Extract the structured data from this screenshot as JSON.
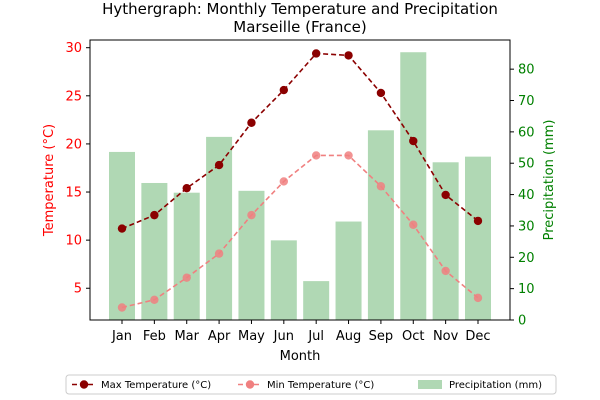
{
  "chart_data": {
    "type": "bar",
    "title": "Hythergraph: Monthly Temperature and Precipitation",
    "subtitle": "Marseille (France)",
    "xlabel": "Month",
    "ylabel_left": "Temperature (°C)",
    "ylabel_right": "Precipitation (mm)",
    "categories": [
      "Jan",
      "Feb",
      "Mar",
      "Apr",
      "May",
      "Jun",
      "Jul",
      "Aug",
      "Sep",
      "Oct",
      "Nov",
      "Dec"
    ],
    "ylim_left": [
      1.7,
      30.8
    ],
    "ylim_right": [
      0,
      89.3
    ],
    "yticks_left": [
      5,
      10,
      15,
      20,
      25,
      30
    ],
    "yticks_right": [
      0,
      10,
      20,
      30,
      40,
      50,
      60,
      70,
      80
    ],
    "grid": false,
    "legend_position": "bottom",
    "series": [
      {
        "name": "Max Temperature (°C)",
        "type": "line",
        "axis": "left",
        "color": "#8b0000",
        "values": [
          11.2,
          12.6,
          15.4,
          17.8,
          22.2,
          25.6,
          29.4,
          29.2,
          25.3,
          20.3,
          14.7,
          12.0
        ]
      },
      {
        "name": "Min Temperature (°C)",
        "type": "line",
        "axis": "left",
        "color": "#f08080",
        "values": [
          3.0,
          3.8,
          6.1,
          8.6,
          12.6,
          16.1,
          18.8,
          18.8,
          15.6,
          11.6,
          6.8,
          4.0
        ]
      },
      {
        "name": "Precipitation (mm)",
        "type": "bar",
        "axis": "right",
        "color": "#b0d8b4",
        "values": [
          53.6,
          43.7,
          40.6,
          58.4,
          41.2,
          25.4,
          12.4,
          31.4,
          60.5,
          85.4,
          50.3,
          52.1
        ]
      }
    ],
    "colors": {
      "left_axis": "#ff0000",
      "right_axis": "#008000",
      "axes": "#000000"
    }
  }
}
